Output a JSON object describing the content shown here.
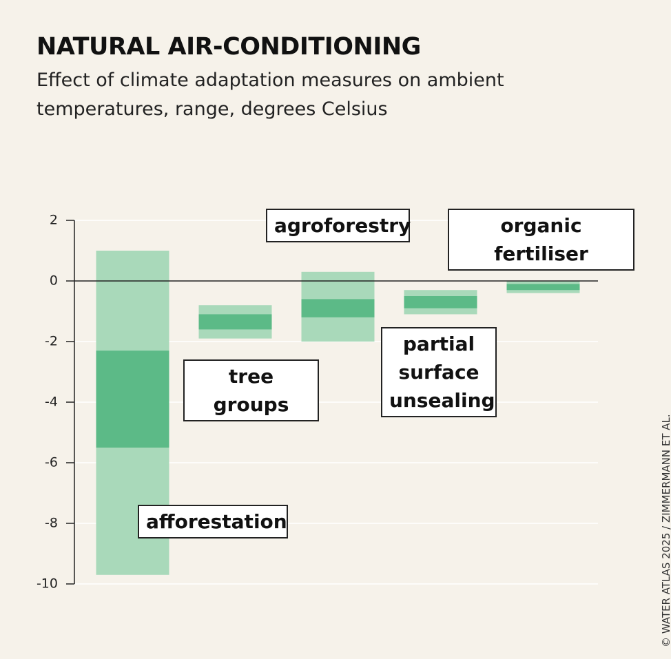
{
  "chart_data": {
    "type": "range_bar",
    "title": "NATURAL AIR-CONDITIONING",
    "subtitle": "Effect of climate adaptation measures on ambient temperatures, range, degrees Celsius",
    "categories": [
      "afforestation",
      "tree groups",
      "agroforestry",
      "partial surface unsealing",
      "organic fertiliser"
    ],
    "full_range": [
      [
        1.0,
        -9.7
      ],
      [
        -0.8,
        -1.9
      ],
      [
        0.3,
        -2.0
      ],
      [
        -0.3,
        -1.1
      ],
      [
        0,
        -0.4
      ]
    ],
    "core_range": [
      [
        -2.3,
        -5.5
      ],
      [
        -1.1,
        -1.6
      ],
      [
        -0.6,
        -1.2
      ],
      [
        -0.5,
        -0.9
      ],
      [
        -0.1,
        -0.3
      ]
    ],
    "full_color": "#a9d9ba",
    "core_color": "#5cba87",
    "ylim": [
      -10,
      2
    ],
    "yticks": [
      2,
      0,
      -2,
      -4,
      -6,
      -8,
      -10
    ],
    "grid": true,
    "source": "© WATER ATLAS 2025 / ZIMMERMANN ET AL."
  }
}
